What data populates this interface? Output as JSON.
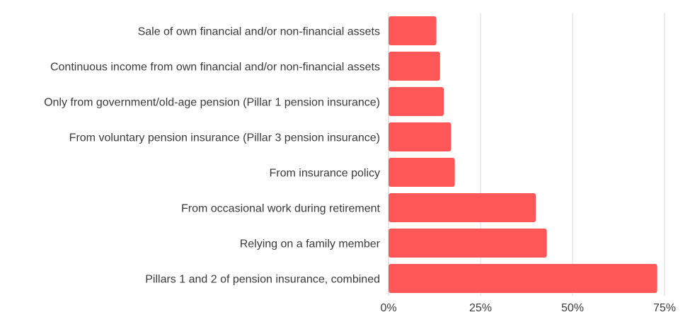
{
  "chart_data": {
    "type": "bar",
    "orientation": "horizontal",
    "title": "",
    "xlabel": "",
    "ylabel": "",
    "categories": [
      "Sale of own financial and/or non-financial assets",
      "Continuous income from own financial and/or non-financial assets",
      "Only from government/old-age pension (Pillar 1 pension insurance)",
      "From voluntary pension insurance (Pillar 3 pension insurance)",
      "From insurance policy",
      "From occasional work during retirement",
      "Relying on a family member",
      "Pillars 1 and 2 of pension insurance, combined"
    ],
    "values": [
      13,
      14,
      15,
      17,
      18,
      40,
      43,
      73
    ],
    "xlim": [
      0,
      75
    ],
    "ticks": [
      0,
      25,
      50,
      75
    ],
    "tick_labels": [
      "0%",
      "25%",
      "50%",
      "75%"
    ],
    "grid": "vertical",
    "bar_color": "#ff5757"
  }
}
